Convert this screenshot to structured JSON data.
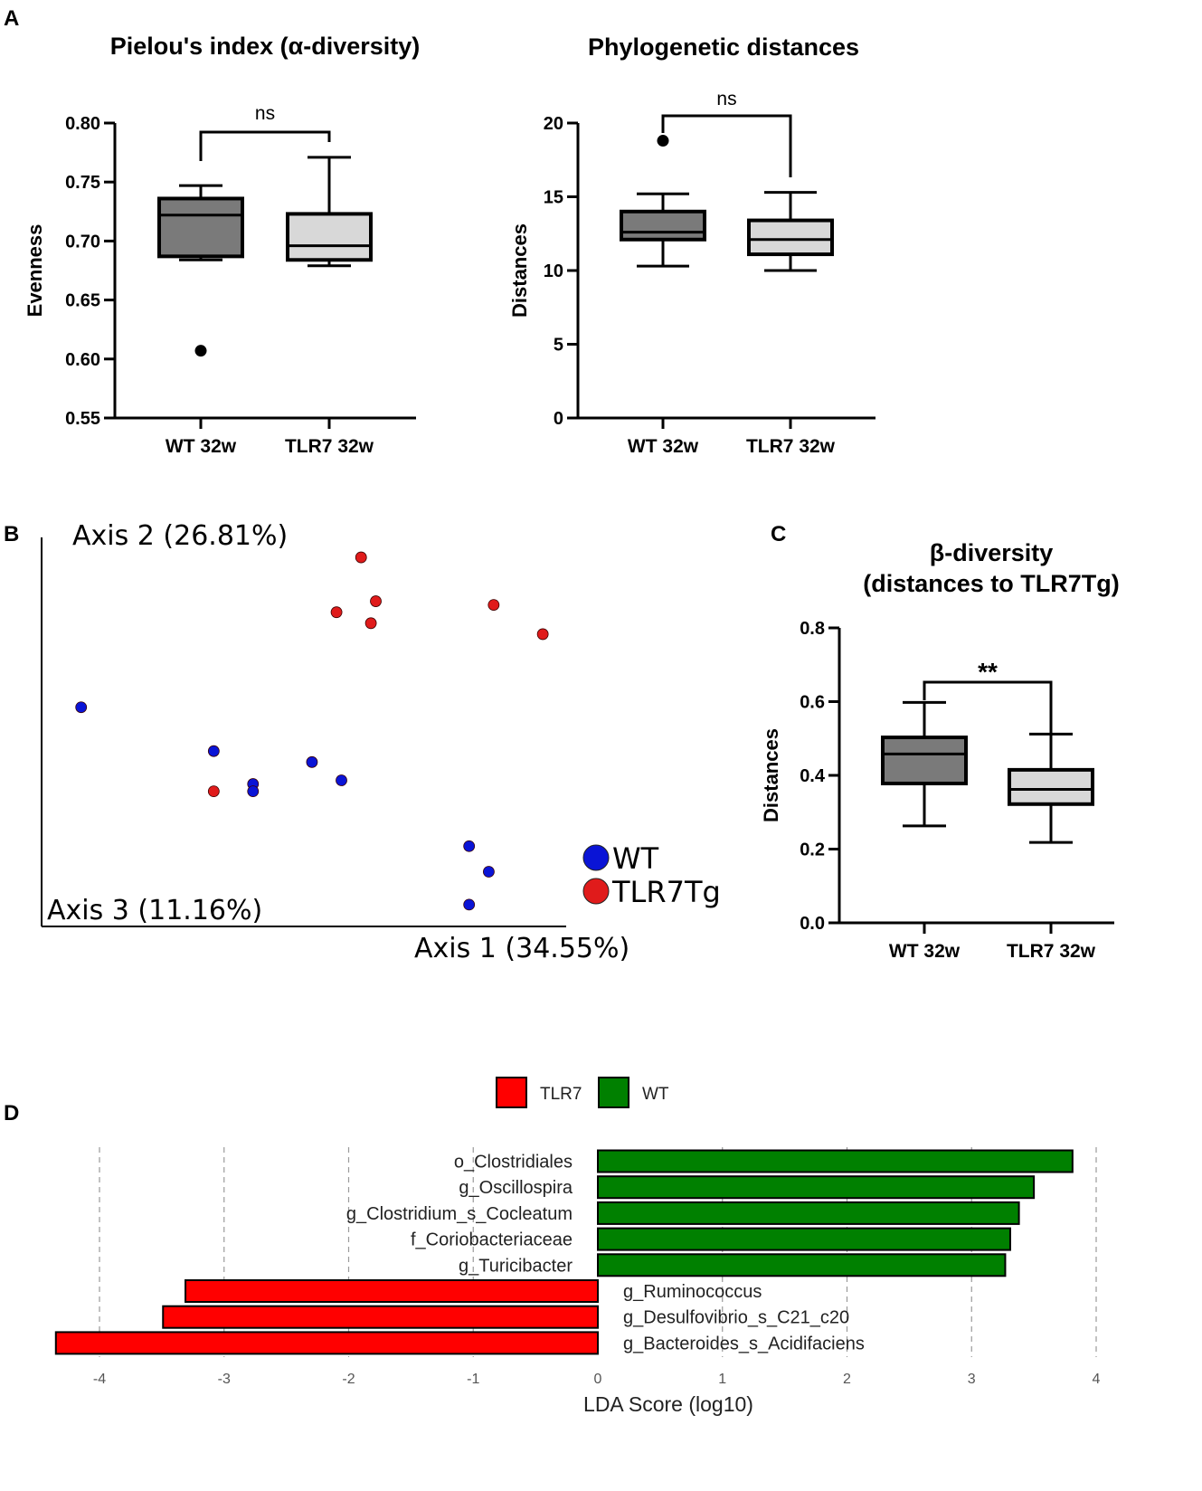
{
  "panel_labels": {
    "a": "A",
    "b": "B",
    "c": "C",
    "d": "D"
  },
  "chart_data": [
    {
      "id": "A-left",
      "type": "box",
      "title": "Pielou's index (α-diversity)",
      "xlabel": "",
      "ylabel": "Evenness",
      "ylim": [
        0.55,
        0.8
      ],
      "yticks": [
        0.55,
        0.6,
        0.65,
        0.7,
        0.75,
        0.8
      ],
      "ytick_labels": [
        "0.55",
        "0.60",
        "0.65",
        "0.70",
        "0.75",
        "0.80"
      ],
      "categories": [
        "WT 32w",
        "TLR7 32w"
      ],
      "boxes": [
        {
          "group": "WT 32w",
          "whisker_low": 0.684,
          "q1": 0.687,
          "median": 0.722,
          "q3": 0.736,
          "whisker_high": 0.747,
          "outliers": [
            0.607
          ],
          "color": "#7a7a7a"
        },
        {
          "group": "TLR7 32w",
          "whisker_low": 0.679,
          "q1": 0.684,
          "median": 0.696,
          "q3": 0.723,
          "whisker_high": 0.771,
          "outliers": [],
          "color": "#d8d8d8"
        }
      ],
      "significance": "ns"
    },
    {
      "id": "A-right",
      "type": "box",
      "title": "Phylogenetic distances",
      "xlabel": "",
      "ylabel": "Distances",
      "ylim": [
        0,
        20
      ],
      "yticks": [
        0,
        5,
        10,
        15,
        20
      ],
      "ytick_labels": [
        "0",
        "5",
        "10",
        "15",
        "20"
      ],
      "categories": [
        "WT 32w",
        "TLR7 32w"
      ],
      "boxes": [
        {
          "group": "WT 32w",
          "whisker_low": 10.3,
          "q1": 12.1,
          "median": 12.6,
          "q3": 14.0,
          "whisker_high": 15.2,
          "outliers": [
            18.8
          ],
          "color": "#7a7a7a"
        },
        {
          "group": "TLR7 32w",
          "whisker_low": 10.0,
          "q1": 11.1,
          "median": 12.1,
          "q3": 13.4,
          "whisker_high": 15.3,
          "outliers": [],
          "color": "#d8d8d8"
        }
      ],
      "significance": "ns"
    },
    {
      "id": "B",
      "type": "scatter",
      "title": "",
      "axis_labels": {
        "axis1": "Axis 1 (34.55%)",
        "axis2": "Axis 2 (26.81%)",
        "axis3": "Axis 3 (11.16%)"
      },
      "xlim": [
        0,
        10
      ],
      "ylim": [
        0,
        10
      ],
      "legend": [
        {
          "name": "WT",
          "color": "#0a14d6"
        },
        {
          "name": "TLR7Tg",
          "color": "#e01b1b"
        }
      ],
      "series": [
        {
          "name": "WT",
          "points": [
            [
              0.4,
              5.7
            ],
            [
              3.1,
              4.5
            ],
            [
              5.1,
              4.2
            ],
            [
              3.9,
              3.6
            ],
            [
              3.9,
              3.4
            ],
            [
              5.7,
              3.7
            ],
            [
              8.3,
              1.9
            ],
            [
              8.7,
              1.2
            ],
            [
              8.3,
              0.3
            ]
          ]
        },
        {
          "name": "TLR7Tg",
          "points": [
            [
              6.1,
              9.8
            ],
            [
              6.4,
              8.6
            ],
            [
              5.6,
              8.3
            ],
            [
              6.3,
              8.0
            ],
            [
              8.8,
              8.5
            ],
            [
              9.8,
              7.7
            ],
            [
              3.1,
              3.4
            ]
          ]
        }
      ]
    },
    {
      "id": "C",
      "type": "box",
      "title": "β-diversity",
      "subtitle": "(distances to TLR7Tg)",
      "xlabel": "",
      "ylabel": "Distances",
      "ylim": [
        0.0,
        0.8
      ],
      "yticks": [
        0.0,
        0.2,
        0.4,
        0.6,
        0.8
      ],
      "ytick_labels": [
        "0.0",
        "0.2",
        "0.4",
        "0.6",
        "0.8"
      ],
      "categories": [
        "WT 32w",
        "TLR7 32w"
      ],
      "boxes": [
        {
          "group": "WT 32w",
          "whisker_low": 0.263,
          "q1": 0.378,
          "median": 0.458,
          "q3": 0.503,
          "whisker_high": 0.598,
          "outliers": [],
          "color": "#7a7a7a"
        },
        {
          "group": "TLR7 32w",
          "whisker_low": 0.218,
          "q1": 0.322,
          "median": 0.362,
          "q3": 0.415,
          "whisker_high": 0.512,
          "outliers": [],
          "color": "#d8d8d8"
        }
      ],
      "significance": "**"
    },
    {
      "id": "D",
      "type": "bar",
      "orientation": "horizontal",
      "title": "",
      "xlabel": "LDA Score (log10)",
      "xlim": [
        -4.4,
        4.2
      ],
      "xticks": [
        -4,
        -3,
        -2,
        -1,
        0,
        1,
        2,
        3,
        4
      ],
      "legend": [
        {
          "name": "TLR7",
          "color": "#ff0000"
        },
        {
          "name": "WT",
          "color": "#008000"
        }
      ],
      "categories": [
        "o_Clostridiales",
        "g_Oscillospira",
        "g_Clostridium_s_Cocleatum",
        "f_Coriobacteriaceae",
        "g_Turicibacter",
        "g_Ruminococcus",
        "g_Desulfovibrio_s_C21_c20",
        "g_Bacteroides_s_Acidifaciens"
      ],
      "values": [
        3.81,
        3.5,
        3.38,
        3.31,
        3.27,
        -3.31,
        -3.49,
        -4.35
      ],
      "groups": [
        "WT",
        "WT",
        "WT",
        "WT",
        "WT",
        "TLR7",
        "TLR7",
        "TLR7"
      ]
    }
  ]
}
